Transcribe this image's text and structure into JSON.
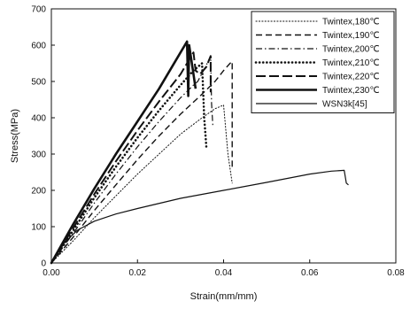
{
  "chart_data": {
    "type": "line",
    "title": "",
    "xlabel": "Strain(mm/mm)",
    "ylabel": "Stress(MPa)",
    "xlim": [
      0,
      0.08
    ],
    "ylim": [
      0,
      700
    ],
    "xticks": [
      0,
      0.02,
      0.04,
      0.06,
      0.08
    ],
    "xtick_labels": [
      "0.00",
      "0.02",
      "0.04",
      "0.06",
      "0.08"
    ],
    "yticks": [
      0,
      100,
      200,
      300,
      400,
      500,
      600,
      700
    ],
    "ytick_labels": [
      "0",
      "100",
      "200",
      "300",
      "400",
      "500",
      "600",
      "700"
    ],
    "grid": false,
    "legend": "top-right",
    "series": [
      {
        "name": "Twintex,180℃",
        "style": "dotted",
        "x": [
          0,
          0.005,
          0.01,
          0.015,
          0.02,
          0.025,
          0.03,
          0.035,
          0.038,
          0.04,
          0.041,
          0.042
        ],
        "y": [
          0,
          60,
          125,
          185,
          245,
          300,
          355,
          400,
          425,
          435,
          300,
          220
        ]
      },
      {
        "name": "Twintex,190℃",
        "style": "dashed",
        "x": [
          0,
          0.005,
          0.01,
          0.015,
          0.02,
          0.025,
          0.03,
          0.035,
          0.038,
          0.04,
          0.0415,
          0.042,
          0.042
        ],
        "y": [
          0,
          70,
          145,
          215,
          285,
          350,
          410,
          465,
          500,
          530,
          550,
          555,
          255
        ]
      },
      {
        "name": "Twintex,200℃",
        "style": "dashdot",
        "x": [
          0,
          0.005,
          0.01,
          0.015,
          0.02,
          0.025,
          0.03,
          0.033,
          0.034,
          0.036,
          0.037,
          0.0372,
          0.0375
        ],
        "y": [
          0,
          80,
          165,
          245,
          320,
          390,
          455,
          490,
          500,
          545,
          570,
          440,
          380
        ]
      },
      {
        "name": "Twintex,210℃",
        "style": "dotted-bold",
        "x": [
          0,
          0.005,
          0.01,
          0.015,
          0.02,
          0.025,
          0.03,
          0.033,
          0.035,
          0.0355,
          0.036
        ],
        "y": [
          0,
          88,
          180,
          265,
          345,
          420,
          490,
          530,
          550,
          400,
          320
        ]
      },
      {
        "name": "Twintex,220℃",
        "style": "long-dash",
        "x": [
          0,
          0.005,
          0.01,
          0.015,
          0.02,
          0.025,
          0.03,
          0.032,
          0.033,
          0.0335,
          0.0345,
          0.036,
          0.037,
          0.037
        ],
        "y": [
          0,
          95,
          190,
          280,
          365,
          445,
          520,
          560,
          580,
          530,
          520,
          540,
          570,
          470
        ]
      },
      {
        "name": "Twintex,230℃",
        "style": "solid-bold",
        "x": [
          0,
          0.005,
          0.01,
          0.015,
          0.02,
          0.025,
          0.03,
          0.0315,
          0.0318,
          0.032,
          0.033,
          0.0335
        ],
        "y": [
          0,
          105,
          205,
          300,
          390,
          480,
          580,
          610,
          460,
          600,
          520,
          480
        ]
      },
      {
        "name": "WSN3k[45]",
        "style": "solid",
        "x": [
          0,
          0.003,
          0.006,
          0.01,
          0.015,
          0.02,
          0.03,
          0.04,
          0.05,
          0.06,
          0.065,
          0.068,
          0.0685,
          0.069
        ],
        "y": [
          0,
          55,
          90,
          115,
          135,
          150,
          178,
          200,
          222,
          245,
          253,
          255,
          220,
          215
        ]
      }
    ]
  }
}
